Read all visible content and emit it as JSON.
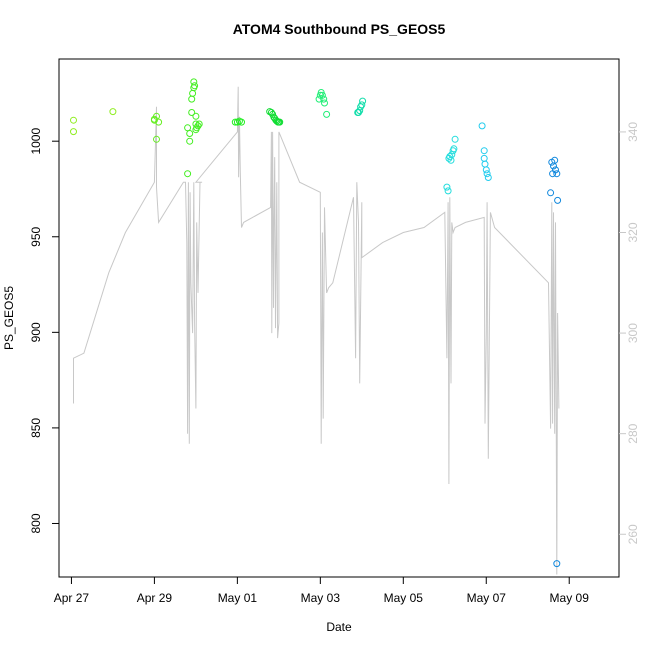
{
  "chart_data": {
    "type": "scatter",
    "title": "ATOM4 Southbound PS_GEOS5",
    "xlabel": "Date",
    "ylabel": "PS_GEOS5",
    "x_ticks": [
      "Apr 27",
      "Apr 29",
      "May 01",
      "May 03",
      "May 05",
      "May 07",
      "May 09"
    ],
    "y_ticks": [
      800,
      850,
      900,
      950,
      1000
    ],
    "y2_ticks": [
      260,
      280,
      300,
      320,
      340
    ],
    "xlim_days": [
      -0.3,
      13.2
    ],
    "ylim": [
      772,
      1043
    ],
    "y2lim": [
      251.5,
      354.5
    ],
    "colors": {
      "secondary_axis": "#c8c8c8",
      "trace": "#c8c8c8",
      "frame": "#000000"
    },
    "series": [
      {
        "values": [
          [
            0.05,
            1011
          ],
          [
            0.05,
            1005
          ],
          [
            1.0,
            1015.5
          ]
        ],
        "color": "#90ee22"
      },
      {
        "values": [
          [
            2.0,
            1011
          ],
          [
            2.05,
            1013
          ],
          [
            2.0,
            1011.5
          ],
          [
            2.05,
            1001
          ],
          [
            2.1,
            1010
          ]
        ],
        "color": "#66ee22"
      },
      {
        "values": [
          [
            2.8,
            983
          ],
          [
            2.8,
            1007
          ],
          [
            2.85,
            1004
          ],
          [
            2.85,
            1000
          ],
          [
            2.9,
            1022
          ],
          [
            2.9,
            1015
          ],
          [
            2.92,
            1025
          ],
          [
            2.95,
            1028
          ],
          [
            2.95,
            1031
          ],
          [
            2.97,
            1029
          ],
          [
            3.0,
            1013
          ],
          [
            3.0,
            1006
          ],
          [
            3.0,
            1009
          ],
          [
            3.02,
            1007
          ],
          [
            3.05,
            1008
          ],
          [
            3.08,
            1009
          ]
        ],
        "color": "#44ee22"
      },
      {
        "values": [
          [
            3.95,
            1010
          ],
          [
            4.0,
            1010
          ],
          [
            4.05,
            1010.5
          ],
          [
            4.1,
            1010
          ]
        ],
        "color": "#22ee22"
      },
      {
        "values": [
          [
            4.78,
            1015.5
          ],
          [
            4.82,
            1015
          ],
          [
            4.85,
            1014
          ],
          [
            4.88,
            1012.5
          ],
          [
            4.9,
            1012
          ],
          [
            4.93,
            1011
          ],
          [
            4.95,
            1010.5
          ],
          [
            4.98,
            1010
          ],
          [
            5.0,
            1010
          ],
          [
            5.02,
            1010
          ]
        ],
        "color": "#11dd33"
      },
      {
        "values": [
          [
            5.97,
            1022
          ],
          [
            6.0,
            1024
          ],
          [
            6.02,
            1025.5
          ],
          [
            6.05,
            1024
          ],
          [
            6.08,
            1022
          ],
          [
            6.1,
            1020
          ],
          [
            6.15,
            1014
          ]
        ],
        "color": "#22ee77"
      },
      {
        "values": [
          [
            6.9,
            1015
          ],
          [
            6.92,
            1015
          ],
          [
            6.95,
            1016
          ],
          [
            6.97,
            1018
          ],
          [
            7.0,
            1019
          ],
          [
            7.02,
            1021
          ]
        ],
        "color": "#11ddaa"
      },
      {
        "values": [
          [
            9.05,
            976
          ],
          [
            9.08,
            974
          ],
          [
            9.1,
            991
          ],
          [
            9.12,
            992
          ],
          [
            9.15,
            990
          ],
          [
            9.17,
            993
          ],
          [
            9.2,
            995
          ],
          [
            9.22,
            996
          ],
          [
            9.25,
            1001
          ]
        ],
        "color": "#22dddd"
      },
      {
        "values": [
          [
            9.9,
            1008
          ],
          [
            9.95,
            995
          ],
          [
            9.95,
            991
          ],
          [
            9.97,
            988
          ],
          [
            10.0,
            985
          ],
          [
            10.02,
            983
          ],
          [
            10.05,
            981
          ]
        ],
        "color": "#22ccee"
      },
      {
        "values": [
          [
            11.55,
            973
          ],
          [
            11.58,
            989
          ],
          [
            11.6,
            983
          ],
          [
            11.62,
            987
          ],
          [
            11.65,
            990
          ],
          [
            11.67,
            985
          ],
          [
            11.7,
            983
          ],
          [
            11.72,
            969
          ],
          [
            11.7,
            779
          ]
        ],
        "color": "#1188dd"
      }
    ],
    "trace_y2": [
      [
        0.05,
        286
      ],
      [
        0.05,
        295
      ],
      [
        0.3,
        296
      ],
      [
        0.9,
        312
      ],
      [
        1.3,
        320
      ],
      [
        2.0,
        330
      ],
      [
        2.05,
        345
      ],
      [
        2.05,
        329
      ],
      [
        2.1,
        322
      ],
      [
        2.7,
        330
      ],
      [
        2.75,
        330
      ],
      [
        2.78,
        318
      ],
      [
        2.8,
        280
      ],
      [
        2.82,
        330
      ],
      [
        2.84,
        278
      ],
      [
        2.86,
        328
      ],
      [
        2.88,
        310
      ],
      [
        2.9,
        305
      ],
      [
        2.92,
        300
      ],
      [
        2.95,
        330
      ],
      [
        2.97,
        302
      ],
      [
        3.0,
        285
      ],
      [
        3.02,
        322
      ],
      [
        3.05,
        308
      ],
      [
        3.1,
        330
      ],
      [
        3.15,
        330
      ],
      [
        3.0,
        330
      ],
      [
        3.5,
        335
      ],
      [
        4.0,
        340
      ],
      [
        4.02,
        349
      ],
      [
        4.03,
        331
      ],
      [
        4.05,
        343
      ],
      [
        4.07,
        332
      ],
      [
        4.1,
        321
      ],
      [
        4.15,
        322
      ],
      [
        4.8,
        325
      ],
      [
        4.82,
        340
      ],
      [
        4.83,
        300
      ],
      [
        4.85,
        340
      ],
      [
        4.87,
        305
      ],
      [
        4.88,
        320
      ],
      [
        4.9,
        335
      ],
      [
        4.92,
        301
      ],
      [
        4.95,
        330
      ],
      [
        4.97,
        299
      ],
      [
        5.0,
        302
      ],
      [
        5.0,
        340
      ],
      [
        5.5,
        330
      ],
      [
        6.0,
        328
      ],
      [
        6.02,
        278
      ],
      [
        6.03,
        295
      ],
      [
        6.05,
        320
      ],
      [
        6.07,
        283
      ],
      [
        6.1,
        325
      ],
      [
        6.15,
        308
      ],
      [
        6.2,
        309
      ],
      [
        6.3,
        310
      ],
      [
        6.8,
        327
      ],
      [
        6.85,
        295
      ],
      [
        6.88,
        330
      ],
      [
        6.92,
        322
      ],
      [
        6.95,
        290
      ],
      [
        6.97,
        305
      ],
      [
        7.0,
        326
      ],
      [
        7.0,
        315
      ],
      [
        7.5,
        318
      ],
      [
        8.0,
        320
      ],
      [
        8.5,
        321
      ],
      [
        9.0,
        324
      ],
      [
        9.05,
        295
      ],
      [
        9.08,
        326
      ],
      [
        9.1,
        270
      ],
      [
        9.12,
        327
      ],
      [
        9.15,
        290
      ],
      [
        9.17,
        322
      ],
      [
        9.2,
        320
      ],
      [
        9.25,
        321
      ],
      [
        9.5,
        322
      ],
      [
        9.95,
        323
      ],
      [
        9.97,
        282
      ],
      [
        10.0,
        300
      ],
      [
        10.02,
        326
      ],
      [
        10.05,
        275
      ],
      [
        10.1,
        324
      ],
      [
        10.2,
        321
      ],
      [
        11.5,
        310
      ],
      [
        11.55,
        281
      ],
      [
        11.58,
        326
      ],
      [
        11.6,
        282
      ],
      [
        11.62,
        324
      ],
      [
        11.65,
        280
      ],
      [
        11.67,
        322
      ],
      [
        11.7,
        252
      ],
      [
        11.72,
        304
      ],
      [
        11.75,
        285
      ]
    ]
  }
}
